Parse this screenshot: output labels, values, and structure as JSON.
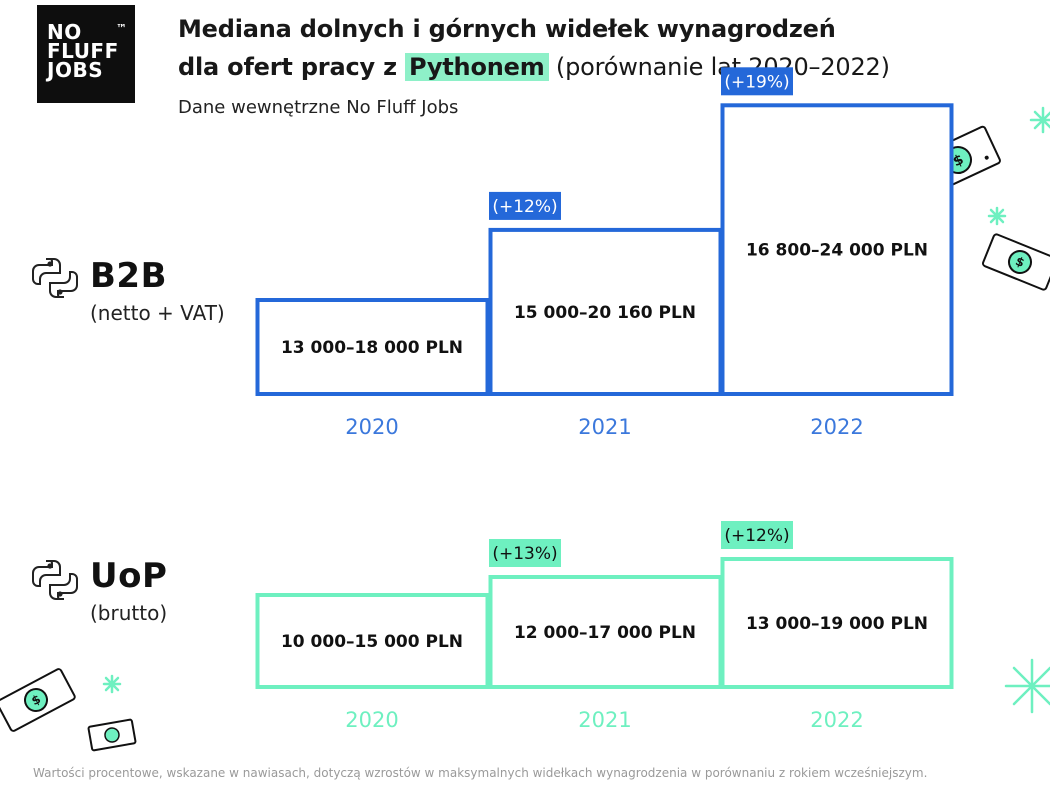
{
  "logo": {
    "lines": [
      "NO",
      "FLUFF",
      "JOBS"
    ],
    "tm": "™"
  },
  "title": {
    "line1": "Mediana dolnych i górnych widełek wynagrodzeń",
    "line2_prefix": "dla ofert pracy z ",
    "line2_highlight": "Pythonem",
    "line2_suffix": " (porównanie lat 2020–2022)"
  },
  "subtitle": "Dane wewnętrzne No Fluff Jobs",
  "segments": {
    "b2b": {
      "label": "B2B",
      "sub": "(netto + VAT)"
    },
    "uop": {
      "label": "UoP",
      "sub": "(brutto)"
    }
  },
  "colors": {
    "b2b": "#2468d9",
    "uop": "#6ef0c0",
    "highlight": "#8ef0c8",
    "b2b_year": "#3b78dc",
    "uop_year": "#6ef0c0"
  },
  "icons": [
    "python-icon",
    "money-bill-icon",
    "sparkle-icon"
  ],
  "chart_data": [
    {
      "type": "bar",
      "title": "B2B",
      "categories": [
        "2020",
        "2021",
        "2022"
      ],
      "series": [
        {
          "name": "dolne widełki",
          "values": [
            13000,
            15000,
            16800
          ]
        },
        {
          "name": "górne widełki",
          "values": [
            18000,
            20160,
            24000
          ]
        }
      ],
      "labels": [
        "13 000–18 000 PLN",
        "15 000–20 160 PLN",
        "16 800–24 000 PLN"
      ],
      "growth": [
        "",
        "(+12%)",
        "(+19%)"
      ]
    },
    {
      "type": "bar",
      "title": "UoP",
      "categories": [
        "2020",
        "2021",
        "2022"
      ],
      "series": [
        {
          "name": "dolne widełki",
          "values": [
            10000,
            12000,
            13000
          ]
        },
        {
          "name": "górne widełki",
          "values": [
            15000,
            17000,
            19000
          ]
        }
      ],
      "labels": [
        "10 000–15 000 PLN",
        "12 000–17 000 PLN",
        "13 000–19 000 PLN"
      ],
      "growth": [
        "",
        "(+13%)",
        "(+12%)"
      ]
    }
  ],
  "footnote": "Wartości procentowe, wskazane w nawiasach, dotyczą wzrostów w maksymalnych widełkach wynagrodzenia w porównaniu z rokiem wcześniejszym."
}
